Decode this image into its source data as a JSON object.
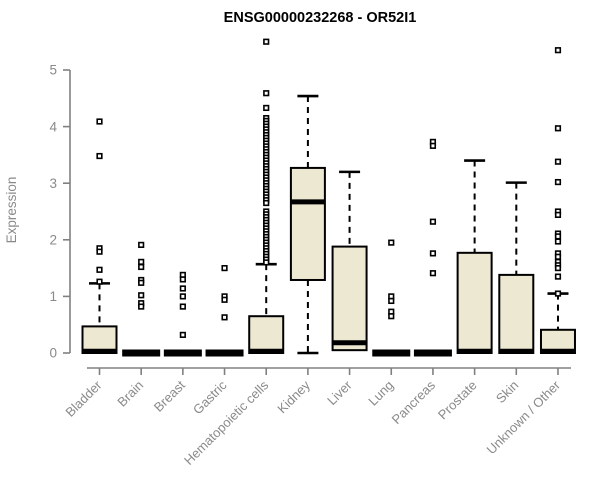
{
  "colors": {
    "box_fill": "#EDE8D1",
    "box_line": "#000000",
    "axis": "#808080",
    "tick_label": "#8a8a8a",
    "title": "#000000",
    "outlier_fill": "#ffffff"
  },
  "chart_data": {
    "type": "boxplot",
    "title": "ENSG00000232268 - OR52I1",
    "ylabel": "Expression",
    "xlabel": "",
    "ylim": [
      0,
      5
    ],
    "yticks": [
      "0",
      "1",
      "2",
      "3",
      "4",
      "5"
    ],
    "grid": false,
    "legend": "none",
    "categories": [
      "Bladder",
      "Brain",
      "Breast",
      "Gastric",
      "Hematopoietic cells",
      "Kidney",
      "Liver",
      "Lung",
      "Pancreas",
      "Prostate",
      "Skin",
      "Unknown / Other"
    ],
    "series": [
      {
        "name": "Bladder",
        "flat": false,
        "q1": 0,
        "median": 0.03,
        "q3": 0.47,
        "whisker_low": 0,
        "whisker_high": 1.23,
        "outliers": [
          4.09,
          3.48,
          1.85,
          1.79,
          1.47,
          1.26
        ]
      },
      {
        "name": "Brain",
        "flat": true,
        "q1": 0,
        "median": 0,
        "q3": 0,
        "whisker_low": 0,
        "whisker_high": 0,
        "outliers": [
          1.91,
          1.61,
          1.52,
          1.29,
          1.24,
          1.02,
          0.88,
          0.82
        ]
      },
      {
        "name": "Breast",
        "flat": true,
        "q1": 0,
        "median": 0,
        "q3": 0,
        "whisker_low": 0,
        "whisker_high": 0,
        "outliers": [
          1.38,
          1.3,
          1.14,
          1.0,
          0.82,
          0.32
        ]
      },
      {
        "name": "Gastric",
        "flat": true,
        "q1": 0,
        "median": 0,
        "q3": 0,
        "whisker_low": 0,
        "whisker_high": 0,
        "outliers": [
          1.5,
          1.0,
          0.94,
          0.63
        ]
      },
      {
        "name": "Hematopoietic cells",
        "flat": false,
        "q1": 0,
        "median": 0.03,
        "q3": 0.65,
        "whisker_low": 0,
        "whisker_high": 1.57,
        "outliers": [
          5.5,
          4.59,
          4.33,
          4.15,
          4.1,
          4.05,
          4.0,
          3.95,
          3.9,
          3.85,
          3.8,
          3.75,
          3.7,
          3.65,
          3.6,
          3.55,
          3.5,
          3.45,
          3.4,
          3.35,
          3.3,
          3.25,
          3.2,
          3.15,
          3.1,
          3.05,
          3.0,
          2.95,
          2.9,
          2.85,
          2.8,
          2.75,
          2.7,
          2.65,
          2.5,
          2.45,
          2.4,
          2.35,
          2.3,
          2.25,
          2.2,
          2.15,
          2.1,
          2.05,
          2.0,
          1.95,
          1.9,
          1.85,
          1.8,
          1.75,
          1.7,
          1.65,
          1.6
        ]
      },
      {
        "name": "Kidney",
        "flat": false,
        "q1": 1.29,
        "median": 2.67,
        "q3": 3.27,
        "whisker_low": 0,
        "whisker_high": 4.54,
        "outliers": []
      },
      {
        "name": "Liver",
        "flat": false,
        "q1": 0.05,
        "median": 0.18,
        "q3": 1.88,
        "whisker_low": 0.05,
        "whisker_high": 3.2,
        "outliers": []
      },
      {
        "name": "Lung",
        "flat": true,
        "q1": 0,
        "median": 0,
        "q3": 0,
        "whisker_low": 0,
        "whisker_high": 0,
        "outliers": [
          1.95,
          1.0,
          0.92,
          0.73,
          0.65
        ]
      },
      {
        "name": "Pancreas",
        "flat": true,
        "q1": 0,
        "median": 0,
        "q3": 0,
        "whisker_low": 0,
        "whisker_high": 0,
        "outliers": [
          3.73,
          3.66,
          2.32,
          1.76,
          1.41
        ]
      },
      {
        "name": "Prostate",
        "flat": false,
        "q1": 0,
        "median": 0.03,
        "q3": 1.77,
        "whisker_low": 0,
        "whisker_high": 3.4,
        "outliers": []
      },
      {
        "name": "Skin",
        "flat": false,
        "q1": 0,
        "median": 0.03,
        "q3": 1.38,
        "whisker_low": 0,
        "whisker_high": 3.01,
        "outliers": []
      },
      {
        "name": "Unknown / Other",
        "flat": false,
        "q1": 0,
        "median": 0.03,
        "q3": 0.41,
        "whisker_low": 0,
        "whisker_high": 1.05,
        "outliers": [
          5.35,
          3.97,
          3.38,
          3.02,
          2.5,
          2.44,
          2.11,
          2.06,
          1.97,
          1.76,
          1.7,
          1.61,
          1.55,
          1.5,
          1.35,
          1.05
        ]
      }
    ]
  }
}
